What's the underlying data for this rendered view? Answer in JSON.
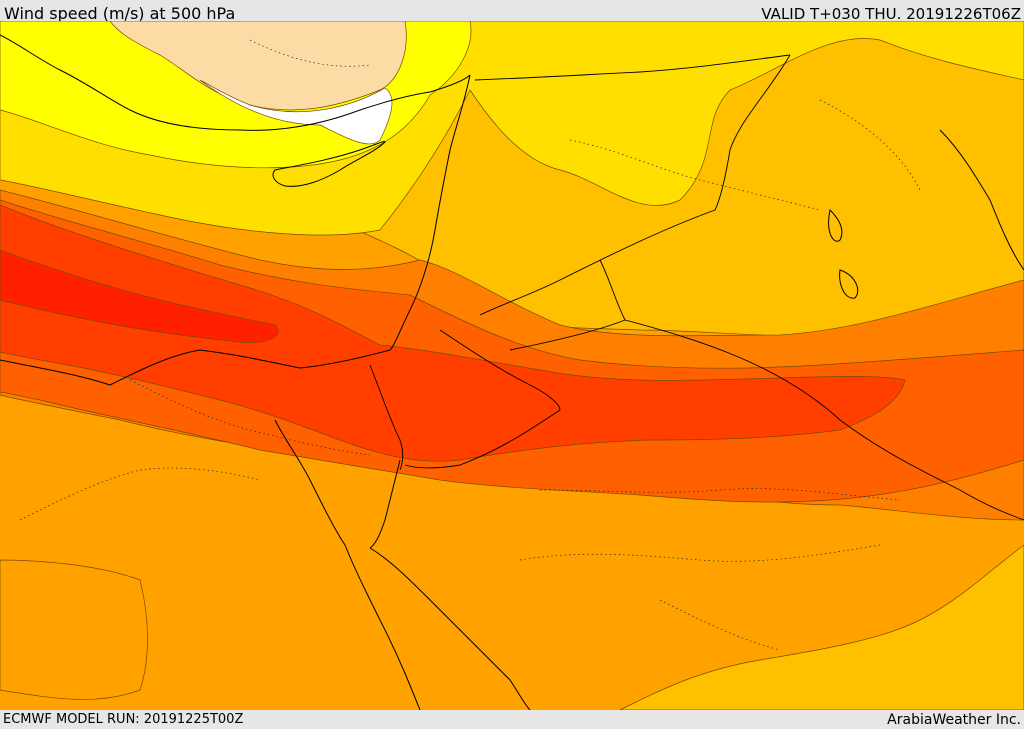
{
  "header": {
    "title": "Wind speed (m/s) at 500 hPa",
    "valid": "VALID T+030 THU. 20191226T06Z"
  },
  "footer": {
    "model_run": "ECMWF MODEL RUN: 20191225T00Z",
    "credit": "ArabiaWeather Inc."
  },
  "map": {
    "variable": "Wind speed",
    "units": "m/s",
    "level": "500 hPa",
    "band_colors": [
      "#ffffff",
      "#fddba5",
      "#ffff00",
      "#ffdf00",
      "#ffc000",
      "#ffa200",
      "#ff8000",
      "#ff6000",
      "#ff3e00",
      "#ff2000"
    ]
  }
}
